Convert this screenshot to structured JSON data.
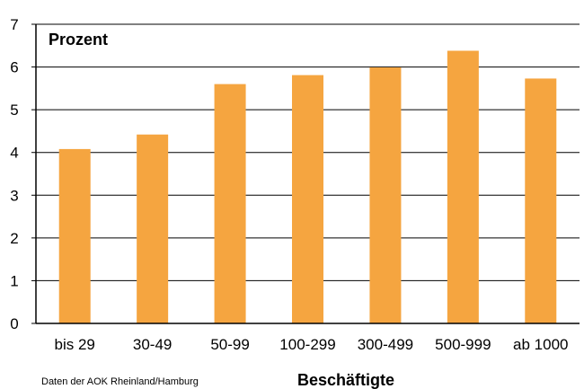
{
  "chart_data": {
    "type": "bar",
    "categories": [
      "bis 29",
      "30-49",
      "50-99",
      "100-299",
      "300-499",
      "500-999",
      "ab 1000"
    ],
    "values": [
      4.08,
      4.42,
      5.6,
      5.81,
      5.99,
      6.38,
      5.73
    ],
    "ylabel": "Prozent",
    "xlabel": "Beschäftigte",
    "ylim": [
      0,
      7
    ],
    "yticks": [
      0,
      1,
      2,
      3,
      4,
      5,
      6,
      7
    ],
    "grid": true,
    "legend": "none",
    "bar_color": "#f5a540",
    "source_note": "Daten der AOK Rheinland/Hamburg"
  }
}
